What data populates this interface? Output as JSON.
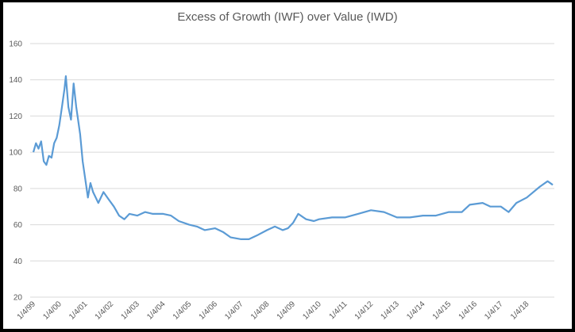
{
  "chart_data": {
    "type": "line",
    "title": "Excess of Growth (IWF) over Value (IWD)",
    "xlabel": "",
    "ylabel": "",
    "ylim": [
      20,
      160
    ],
    "yticks": [
      20,
      40,
      60,
      80,
      100,
      120,
      140,
      160
    ],
    "xticks": [
      "1/4/99",
      "1/4/00",
      "1/4/01",
      "1/4/02",
      "1/4/03",
      "1/4/04",
      "1/4/05",
      "1/4/06",
      "1/4/07",
      "1/4/08",
      "1/4/09",
      "1/4/10",
      "1/4/11",
      "1/4/12",
      "1/4/13",
      "1/4/14",
      "1/4/15",
      "1/4/16",
      "1/4/17",
      "1/4/18"
    ],
    "grid": "horizontal",
    "legend": "none",
    "color": "#5B9BD5",
    "series": [
      {
        "x": [
          1999.0,
          1999.1,
          1999.2,
          1999.3,
          1999.4,
          1999.5,
          1999.6,
          1999.7,
          1999.8,
          1999.9,
          2000.0,
          2000.1,
          2000.2,
          2000.25,
          2000.35,
          2000.45,
          2000.55,
          2000.65,
          2000.8,
          2000.9,
          2001.0,
          2001.1,
          2001.2,
          2001.3,
          2001.5,
          2001.7,
          2001.9,
          2002.1,
          2002.3,
          2002.5,
          2002.7,
          2003.0,
          2003.3,
          2003.6,
          2004.0,
          2004.3,
          2004.6,
          2005.0,
          2005.3,
          2005.6,
          2006.0,
          2006.3,
          2006.6,
          2007.0,
          2007.3,
          2007.6,
          2008.0,
          2008.3,
          2008.6,
          2008.8,
          2009.0,
          2009.2,
          2009.5,
          2009.8,
          2010.0,
          2010.5,
          2011.0,
          2011.5,
          2012.0,
          2012.5,
          2013.0,
          2013.5,
          2014.0,
          2014.5,
          2015.0,
          2015.5,
          2015.8,
          2016.3,
          2016.6,
          2017.0,
          2017.3,
          2017.6,
          2018.0,
          2018.5,
          2018.8,
          2019.0
        ],
        "y": [
          100,
          105,
          102,
          106,
          95,
          93,
          98,
          97,
          105,
          108,
          115,
          125,
          135,
          142,
          125,
          118,
          138,
          125,
          110,
          95,
          85,
          75,
          83,
          78,
          72,
          78,
          74,
          70,
          65,
          63,
          66,
          65,
          67,
          66,
          66,
          65,
          62,
          60,
          59,
          57,
          58,
          56,
          53,
          52,
          52,
          54,
          57,
          59,
          57,
          58,
          61,
          66,
          63,
          62,
          63,
          64,
          64,
          66,
          68,
          67,
          64,
          64,
          65,
          65,
          67,
          67,
          71,
          72,
          70,
          70,
          67,
          72,
          75,
          81,
          84,
          82
        ]
      }
    ]
  }
}
